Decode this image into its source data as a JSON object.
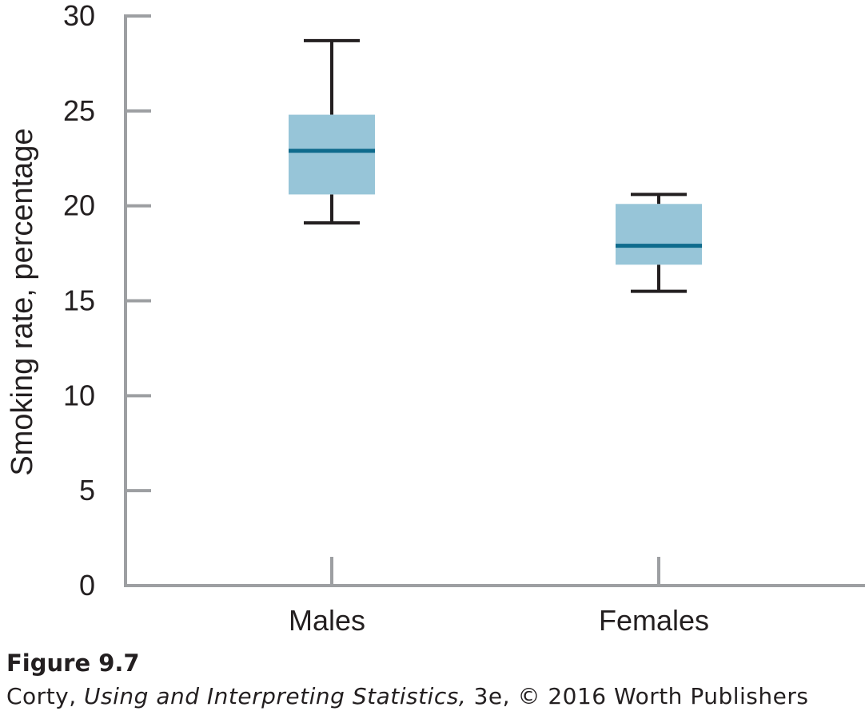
{
  "chart_data": {
    "type": "box",
    "ylabel": "Smoking rate, percentage",
    "ylim": [
      0,
      30
    ],
    "yticks": [
      "0",
      "5",
      "10",
      "15",
      "20",
      "25",
      "30"
    ],
    "categories": [
      "Males",
      "Females"
    ],
    "boxes": [
      {
        "category": "Males",
        "min": 19.1,
        "q1": 20.6,
        "median": 22.9,
        "q3": 24.8,
        "max": 28.7
      },
      {
        "category": "Females",
        "min": 15.5,
        "q1": 16.9,
        "median": 17.9,
        "q3": 20.1,
        "max": 20.6
      }
    ],
    "grid": false,
    "colors": {
      "box_fill": "#97c5d8",
      "median": "#0e6b8c",
      "whisker": "#231f20",
      "axis": "#9d9fa2"
    }
  },
  "caption": {
    "figure_label": "Figure 9.7",
    "source_author": "Corty, ",
    "source_title": "Using and Interpreting Statistics,",
    "source_rest": " 3e, © 2016 Worth Publishers"
  }
}
